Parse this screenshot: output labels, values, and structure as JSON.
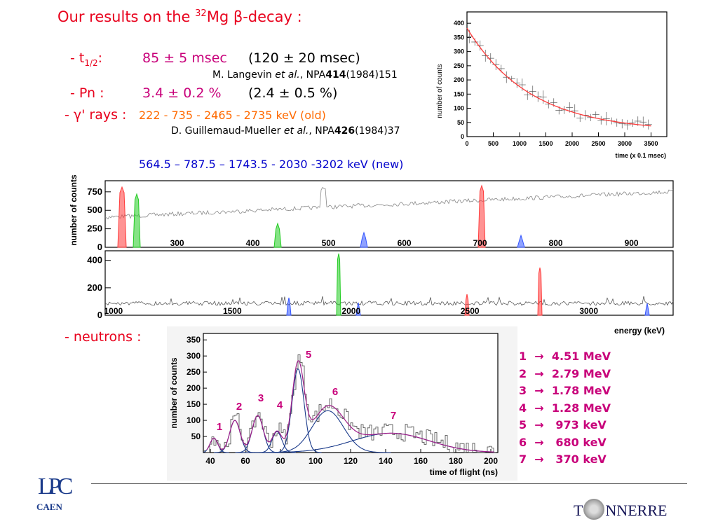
{
  "title": {
    "pre": "Our results on the ",
    "mass": "32",
    "post": "Mg ",
    "beta": "β",
    "tail": "-decay :"
  },
  "halflife": {
    "label_pre": "- t",
    "label_sub": "1/2",
    "label_post": ":",
    "value": "85 ± 5 msec",
    "previous": "(120 ± 20 msec)",
    "ref_author": "M. Langevin ",
    "ref_etal": "et al.",
    "ref_journal": ", NPA",
    "ref_vol": "414",
    "ref_tail": "(1984)151"
  },
  "pn": {
    "label": "- Pn :",
    "value": "3.4 ± 0.2 %",
    "previous": "(2.4 ± 0.5 %)"
  },
  "gamma": {
    "label": "- γ' rays :",
    "old_lines": "222 - 735 - 2465 - 2735 keV   (old)",
    "ref_author": "D. Guillemaud-Mueller ",
    "ref_etal": "et al.",
    "ref_journal": ", NPA",
    "ref_vol": "426",
    "ref_tail": "(1984)37",
    "new_lines": "564.5 – 787.5 – 1743.5 - 2030 -3202 keV  (new)"
  },
  "decay_plot": {
    "ylabel": "number of counts",
    "xlabel": "time (x 0.1 msec)",
    "yticks": [
      "400",
      "350",
      "300",
      "250",
      "200",
      "150",
      "100",
      "50",
      "0"
    ],
    "xticks": [
      "0",
      "500",
      "1000",
      "1500",
      "2000",
      "2500",
      "3000",
      "3500"
    ]
  },
  "gamma_spectrum": {
    "ylabel": "number of counts",
    "xlabel": "energy (keV)",
    "top_yticks": [
      "750",
      "500",
      "250",
      "0"
    ],
    "top_xticks": [
      "300",
      "400",
      "500",
      "600",
      "700",
      "800",
      "900"
    ],
    "bottom_yticks": [
      "400",
      "200",
      "0"
    ],
    "bottom_xticks": [
      "1000",
      "1500",
      "2000",
      "2500",
      "3000"
    ]
  },
  "neutrons": {
    "label": "- neutrons :",
    "ylabel": "number of counts",
    "xlabel": "time of flight (ns)",
    "yticks": [
      "350",
      "300",
      "250",
      "200",
      "150",
      "100",
      "50"
    ],
    "xticks": [
      "40",
      "60",
      "80",
      "100",
      "120",
      "140",
      "160",
      "180",
      "200"
    ],
    "peak_labels": [
      "1",
      "2",
      "3",
      "4",
      "5",
      "6",
      "7"
    ],
    "energies": [
      {
        "n": "1",
        "arrow": "→",
        "e": "4.51 MeV"
      },
      {
        "n": "2",
        "arrow": "→",
        "e": "2.79 MeV"
      },
      {
        "n": "3",
        "arrow": "→",
        "e": "1.78 MeV"
      },
      {
        "n": "4",
        "arrow": "→",
        "e": "1.28 MeV"
      },
      {
        "n": "5",
        "arrow": "→",
        "e": " 973 keV"
      },
      {
        "n": "6",
        "arrow": "→",
        "e": " 680 keV"
      },
      {
        "n": "7",
        "arrow": "→",
        "e": " 370 keV"
      }
    ]
  },
  "logos": {
    "lpc": "LPC",
    "caen": "CAEN",
    "tonnerre_t": "T",
    "tonnerre_rest": "NNERRE"
  }
}
